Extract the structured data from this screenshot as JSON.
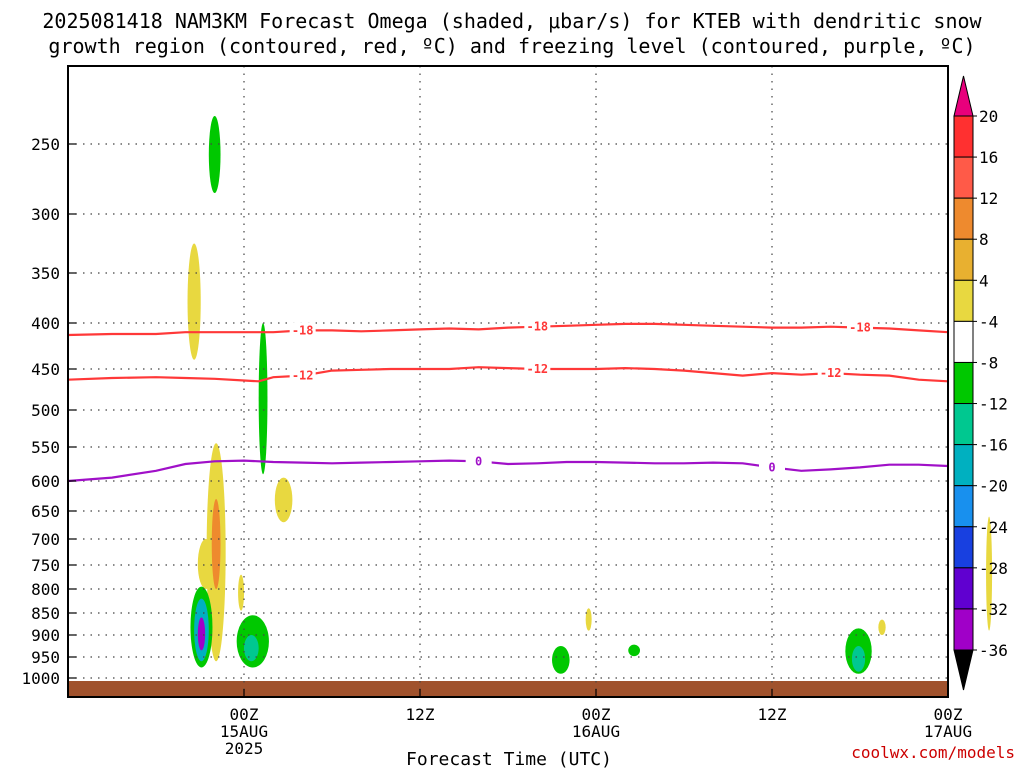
{
  "title_line1": "2025081418 NAM3KM Forecast Omega (shaded, μbar/s) for KTEB with dendritic snow",
  "title_line2": "growth region (contoured, red, ºC) and freezing level (contoured, purple, ºC)",
  "credit": "coolwx.com/models",
  "chart_data": {
    "type": "contour",
    "title": "2025081418 NAM3KM Forecast Omega (shaded, μbar/s) for KTEB with dendritic snow growth region (contoured, red, ºC) and freezing level (contoured, purple, ºC)",
    "xlabel": "Forecast Time (UTC)",
    "ylabel": "",
    "x_unit": "forecast hour",
    "xlim": [
      -6,
      54
    ],
    "y_levels_hpa": [
      250,
      300,
      350,
      400,
      450,
      500,
      550,
      600,
      650,
      700,
      750,
      800,
      850,
      900,
      950,
      1000
    ],
    "ylim": [
      1025,
      195
    ],
    "grid": true,
    "x_ticks": [
      {
        "hour": 6,
        "label": "00Z",
        "sub1": "15AUG",
        "sub2": "2025"
      },
      {
        "hour": 18,
        "label": "12Z",
        "sub1": "",
        "sub2": ""
      },
      {
        "hour": 30,
        "label": "00Z",
        "sub1": "16AUG",
        "sub2": ""
      },
      {
        "hour": 42,
        "label": "12Z",
        "sub1": "",
        "sub2": ""
      },
      {
        "hour": 54,
        "label": "00Z",
        "sub1": "17AUG",
        "sub2": ""
      }
    ],
    "colorbar": {
      "labels": [
        "20",
        "16",
        "12",
        "8",
        "4",
        "-4",
        "-8",
        "-12",
        "-16",
        "-20",
        "-24",
        "-28",
        "-32",
        "-36"
      ],
      "colors": [
        "#e8007c",
        "#ff3030",
        "#ff5a48",
        "#ee8a2e",
        "#e8b030",
        "#e8d840",
        "#ffffff",
        "#00c800",
        "#00c890",
        "#00b0c0",
        "#1890ee",
        "#1840e0",
        "#6000d0",
        "#a000c8",
        "#a8a8a8",
        "#000000"
      ]
    },
    "contours": [
      {
        "name": "-18",
        "units": "ºC",
        "color": "#ff3838",
        "points": [
          [
            -6,
            413
          ],
          [
            -3,
            412
          ],
          [
            0,
            412
          ],
          [
            2,
            410
          ],
          [
            4,
            410
          ],
          [
            6,
            410
          ],
          [
            8,
            410
          ],
          [
            10,
            408
          ],
          [
            12,
            408
          ],
          [
            14,
            409
          ],
          [
            16,
            408
          ],
          [
            18,
            407
          ],
          [
            20,
            406
          ],
          [
            22,
            407
          ],
          [
            24,
            405
          ],
          [
            26,
            404
          ],
          [
            28,
            403
          ],
          [
            30,
            402
          ],
          [
            32,
            401
          ],
          [
            34,
            401
          ],
          [
            36,
            402
          ],
          [
            38,
            403
          ],
          [
            40,
            404
          ],
          [
            42,
            405
          ],
          [
            44,
            405
          ],
          [
            46,
            404
          ],
          [
            48,
            405
          ],
          [
            50,
            406
          ],
          [
            52,
            408
          ],
          [
            54,
            410
          ],
          [
            56,
            413
          ],
          [
            58,
            412
          ],
          [
            60,
            408
          ],
          [
            62,
            403
          ],
          [
            64,
            402
          ],
          [
            66,
            399
          ],
          [
            68,
            396
          ]
        ],
        "labels_at": [
          10,
          26,
          48
        ]
      },
      {
        "name": "-12",
        "units": "ºC",
        "color": "#ff3838",
        "points": [
          [
            -6,
            463
          ],
          [
            -3,
            461
          ],
          [
            0,
            460
          ],
          [
            2,
            461
          ],
          [
            4,
            462
          ],
          [
            6,
            464
          ],
          [
            7,
            465
          ],
          [
            8,
            460
          ],
          [
            10,
            458
          ],
          [
            12,
            452
          ],
          [
            14,
            451
          ],
          [
            16,
            450
          ],
          [
            18,
            450
          ],
          [
            20,
            450
          ],
          [
            22,
            448
          ],
          [
            24,
            449
          ],
          [
            26,
            450
          ],
          [
            28,
            450
          ],
          [
            30,
            450
          ],
          [
            32,
            449
          ],
          [
            34,
            450
          ],
          [
            36,
            452
          ],
          [
            38,
            455
          ],
          [
            40,
            458
          ],
          [
            42,
            455
          ],
          [
            44,
            457
          ],
          [
            46,
            455
          ],
          [
            48,
            457
          ],
          [
            50,
            458
          ],
          [
            52,
            463
          ],
          [
            54,
            465
          ],
          [
            56,
            466
          ],
          [
            58,
            462
          ],
          [
            60,
            457
          ],
          [
            62,
            452
          ],
          [
            64,
            448
          ],
          [
            66,
            447
          ],
          [
            68,
            447
          ]
        ],
        "labels_at": [
          10,
          27,
          46
        ]
      },
      {
        "name": "0",
        "units": "ºC",
        "color": "#a010c8",
        "points": [
          [
            -6,
            600
          ],
          [
            -3,
            595
          ],
          [
            0,
            585
          ],
          [
            2,
            575
          ],
          [
            4,
            571
          ],
          [
            6,
            570
          ],
          [
            8,
            572
          ],
          [
            10,
            573
          ],
          [
            12,
            574
          ],
          [
            14,
            573
          ],
          [
            16,
            572
          ],
          [
            18,
            571
          ],
          [
            20,
            570
          ],
          [
            22,
            571
          ],
          [
            24,
            575
          ],
          [
            26,
            574
          ],
          [
            28,
            572
          ],
          [
            30,
            572
          ],
          [
            32,
            573
          ],
          [
            34,
            574
          ],
          [
            36,
            574
          ],
          [
            38,
            573
          ],
          [
            40,
            574
          ],
          [
            42,
            580
          ],
          [
            44,
            585
          ],
          [
            46,
            583
          ],
          [
            48,
            580
          ],
          [
            50,
            576
          ],
          [
            52,
            576
          ],
          [
            54,
            578
          ],
          [
            56,
            580
          ],
          [
            58,
            582
          ],
          [
            60,
            585
          ],
          [
            62,
            586
          ],
          [
            64,
            586
          ],
          [
            66,
            586
          ],
          [
            68,
            587
          ]
        ],
        "labels_at": [
          23,
          42
        ]
      }
    ],
    "shaded_regions": [
      {
        "value": "-8",
        "center": [
          4,
          250
        ],
        "p_range": [
          230,
          285
        ],
        "hour_halfwidth": 0.4
      },
      {
        "value": "4",
        "center": [
          2.6,
          380
        ],
        "p_range": [
          325,
          440
        ],
        "hour_halfwidth": 0.45
      },
      {
        "value": "-8",
        "center": [
          7.3,
          490
        ],
        "p_range": [
          400,
          590
        ],
        "hour_halfwidth": 0.3
      },
      {
        "value": "4",
        "center": [
          8.7,
          635
        ],
        "p_range": [
          595,
          670
        ],
        "hour_halfwidth": 0.6
      },
      {
        "value": "4",
        "center": [
          3.4,
          745
        ],
        "p_range": [
          700,
          800
        ],
        "hour_halfwidth": 0.55
      },
      {
        "value": "4",
        "center": [
          4.1,
          720
        ],
        "p_range": [
          545,
          960
        ],
        "hour_halfwidth": 0.65
      },
      {
        "value": "12",
        "center": [
          4.1,
          700
        ],
        "p_range": [
          630,
          800
        ],
        "hour_halfwidth": 0.3
      },
      {
        "value": "4",
        "center": [
          5.8,
          810
        ],
        "p_range": [
          770,
          845
        ],
        "hour_halfwidth": 0.2
      },
      {
        "value": "-8",
        "center": [
          3.1,
          900
        ],
        "p_range": [
          795,
          975
        ],
        "hour_halfwidth": 0.75
      },
      {
        "value": "-16",
        "center": [
          3.1,
          900
        ],
        "p_range": [
          820,
          960
        ],
        "hour_halfwidth": 0.5
      },
      {
        "value": "-28",
        "center": [
          3.1,
          905
        ],
        "p_range": [
          860,
          935
        ],
        "hour_halfwidth": 0.25
      },
      {
        "value": "-8",
        "center": [
          6.6,
          915
        ],
        "p_range": [
          855,
          975
        ],
        "hour_halfwidth": 1.1
      },
      {
        "value": "-12",
        "center": [
          6.5,
          935
        ],
        "p_range": [
          900,
          960
        ],
        "hour_halfwidth": 0.5
      },
      {
        "value": "-8",
        "center": [
          27.6,
          958
        ],
        "p_range": [
          925,
          990
        ],
        "hour_halfwidth": 0.6
      },
      {
        "value": "4",
        "center": [
          29.5,
          865
        ],
        "p_range": [
          840,
          890
        ],
        "hour_halfwidth": 0.2
      },
      {
        "value": "-8",
        "center": [
          32.6,
          935
        ],
        "p_range": [
          922,
          948
        ],
        "hour_halfwidth": 0.4
      },
      {
        "value": "-8",
        "center": [
          47.9,
          950
        ],
        "p_range": [
          885,
          990
        ],
        "hour_halfwidth": 0.9
      },
      {
        "value": "-12",
        "center": [
          47.9,
          955
        ],
        "p_range": [
          925,
          985
        ],
        "hour_halfwidth": 0.45
      },
      {
        "value": "4",
        "center": [
          49.5,
          880
        ],
        "p_range": [
          865,
          900
        ],
        "hour_halfwidth": 0.25
      },
      {
        "value": "4",
        "center": [
          56.8,
          780
        ],
        "p_range": [
          660,
          890
        ],
        "hour_halfwidth": 0.15
      }
    ]
  }
}
